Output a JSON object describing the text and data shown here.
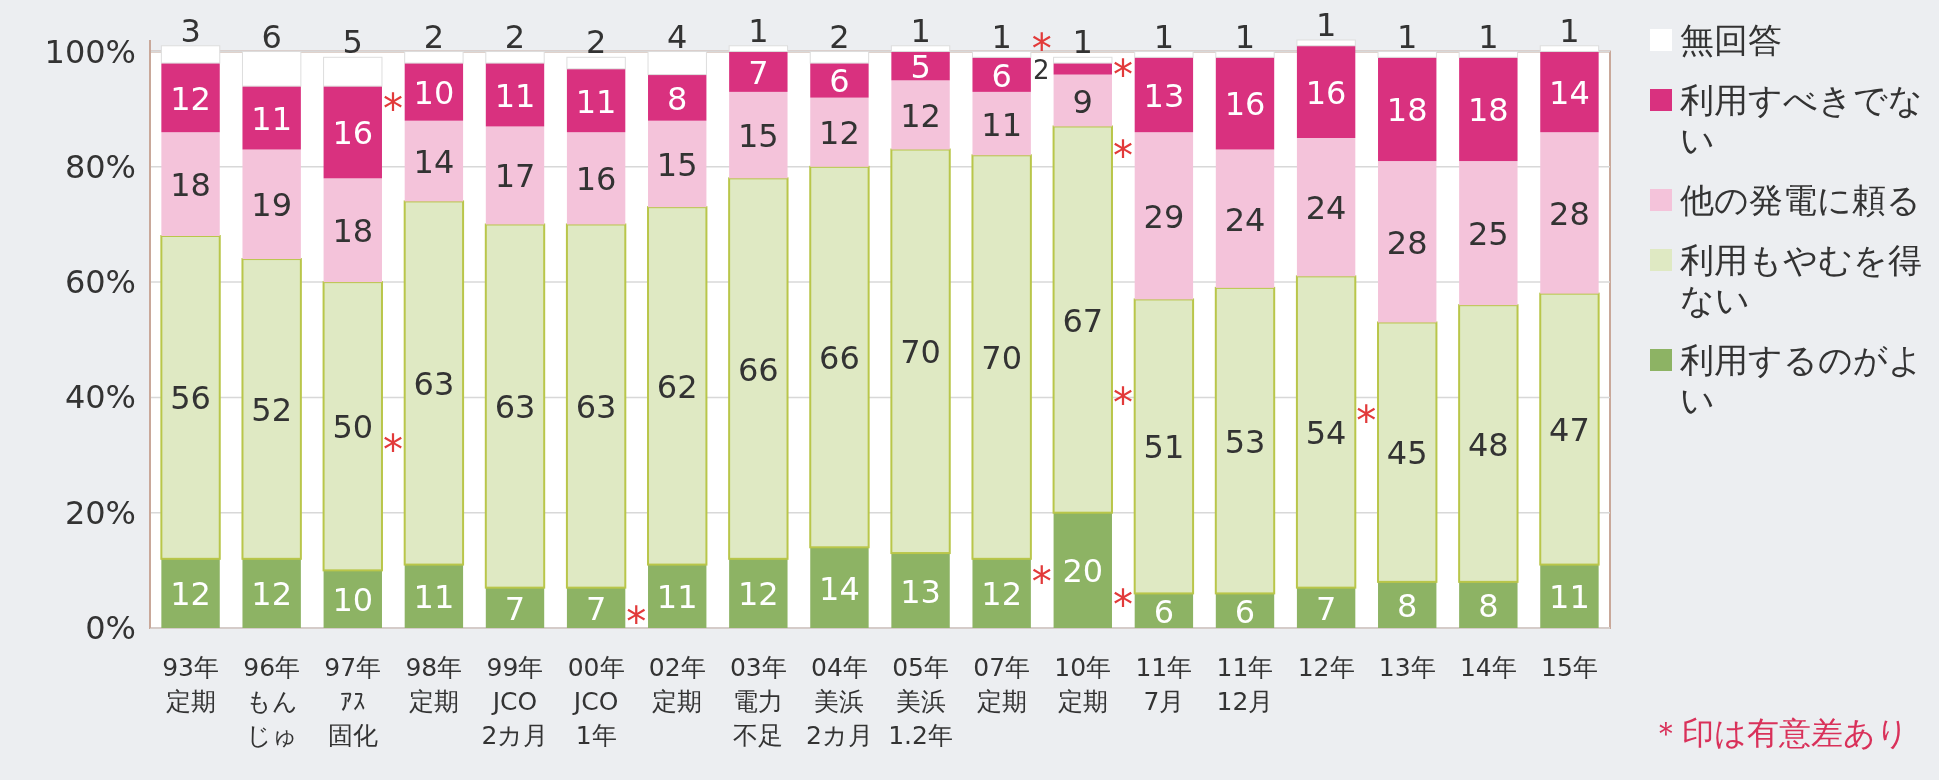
{
  "chart_data": {
    "type": "bar",
    "stacked": true,
    "data_labels": true,
    "grid": "y",
    "legend": "right",
    "categories": [
      "93年定期",
      "96年もんじゅ",
      "97年ｱｽ固化",
      "98年定期",
      "99年JCO 2カ月",
      "00年JCO 1年",
      "02年定期",
      "03年電力不足",
      "04年美浜2カ月",
      "05年美浜1.2年",
      "07年定期",
      "10年定期",
      "11年7月",
      "11年12月",
      "12年",
      "13年",
      "14年",
      "15年"
    ],
    "ylim": [
      0,
      102
    ],
    "yticks": [
      {
        "value": 0,
        "label": "0%"
      },
      {
        "value": 20,
        "label": "20%"
      },
      {
        "value": 40,
        "label": "40%"
      },
      {
        "value": 60,
        "label": "60%"
      },
      {
        "value": 80,
        "label": "80%"
      },
      {
        "value": 100,
        "label": "100%"
      }
    ],
    "series": [
      {
        "name": "利用するのがよい",
        "color": "#8db364",
        "values": [
          12,
          12,
          10,
          11,
          7,
          7,
          11,
          12,
          14,
          13,
          12,
          20,
          6,
          6,
          7,
          8,
          8,
          11
        ]
      },
      {
        "name": "利用もやむを得ない",
        "color": "#dfe9c3",
        "values": [
          56,
          52,
          50,
          63,
          63,
          63,
          62,
          66,
          66,
          70,
          70,
          67,
          51,
          53,
          54,
          45,
          48,
          47
        ]
      },
      {
        "name": "他の発電に頼る",
        "color": "#f4c3da",
        "values": [
          18,
          19,
          18,
          14,
          17,
          16,
          15,
          15,
          12,
          12,
          11,
          9,
          29,
          24,
          24,
          28,
          25,
          28
        ]
      },
      {
        "name": "利用すべきでない",
        "color": "#d9317f",
        "values": [
          12,
          11,
          16,
          10,
          11,
          11,
          8,
          7,
          6,
          5,
          6,
          2,
          13,
          16,
          16,
          18,
          18,
          14
        ]
      },
      {
        "name": "無回答",
        "color": "#ffffff",
        "values": [
          3,
          6,
          5,
          2,
          2,
          2,
          4,
          1,
          2,
          1,
          1,
          1,
          1,
          1,
          1,
          1,
          1,
          1
        ]
      }
    ],
    "annotations": [
      "*",
      "*",
      "*",
      "*",
      "*",
      "*",
      "*",
      "*",
      "*",
      "*",
      "＊印は有意差あり"
    ]
  }
}
